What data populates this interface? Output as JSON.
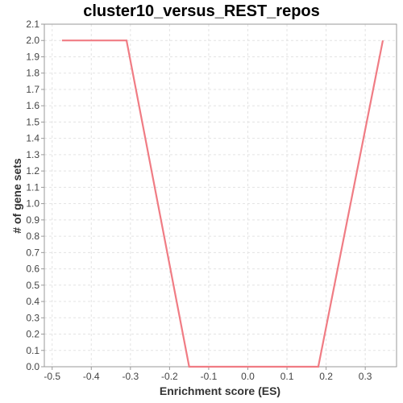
{
  "chart_data": {
    "type": "line",
    "title": "cluster10_versus_REST_repos",
    "xlabel": "Enrichment score (ES)",
    "ylabel": "# of gene sets",
    "xlim": [
      -0.52,
      0.38
    ],
    "ylim": [
      0.0,
      2.1
    ],
    "xticks": [
      "-0.5",
      "-0.4",
      "-0.3",
      "-0.2",
      "-0.1",
      "0.0",
      "0.1",
      "0.2",
      "0.3"
    ],
    "xtick_values": [
      -0.5,
      -0.4,
      -0.3,
      -0.2,
      -0.1,
      0.0,
      0.1,
      0.2,
      0.3
    ],
    "yticks": [
      "0.0",
      "0.1",
      "0.2",
      "0.3",
      "0.4",
      "0.5",
      "0.6",
      "0.7",
      "0.8",
      "0.9",
      "1.0",
      "1.1",
      "1.2",
      "1.3",
      "1.4",
      "1.5",
      "1.6",
      "1.7",
      "1.8",
      "1.9",
      "2.0",
      "2.1"
    ],
    "ytick_values": [
      0.0,
      0.1,
      0.2,
      0.3,
      0.4,
      0.5,
      0.6,
      0.7,
      0.8,
      0.9,
      1.0,
      1.1,
      1.2,
      1.3,
      1.4,
      1.5,
      1.6,
      1.7,
      1.8,
      1.9,
      2.0,
      2.1
    ],
    "grid": true,
    "series": [
      {
        "color": "#f07c84",
        "x": [
          -0.475,
          -0.31,
          -0.15,
          0.18,
          0.345
        ],
        "y": [
          2.0,
          2.0,
          0.0,
          0.0,
          2.0
        ]
      }
    ]
  }
}
